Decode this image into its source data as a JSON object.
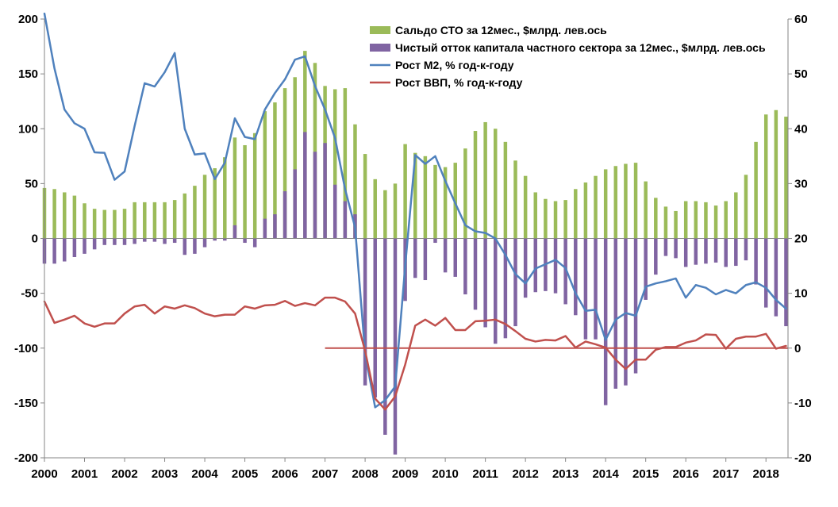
{
  "chart_data": {
    "type": "bar",
    "title": "",
    "xlabel": "",
    "ylabel": "",
    "ylim": [
      -200,
      200
    ],
    "y2lim": [
      -20,
      60
    ],
    "yticks": [
      -200,
      -150,
      -100,
      -50,
      0,
      50,
      100,
      150,
      200
    ],
    "y2ticks": [
      -20,
      -10,
      0,
      10,
      20,
      30,
      40,
      50,
      60
    ],
    "xlim": [
      2000,
      2018.55
    ],
    "year_ticks": [
      "2000",
      "2001",
      "2002",
      "2003",
      "2004",
      "2005",
      "2006",
      "2007",
      "2008",
      "2009",
      "2010",
      "2011",
      "2012",
      "2013",
      "2014",
      "2015",
      "2016",
      "2017",
      "2018"
    ],
    "grid": false,
    "legend_position": "top-right",
    "x": [
      2000.0,
      2000.25,
      2000.5,
      2000.75,
      2001.0,
      2001.25,
      2001.5,
      2001.75,
      2002.0,
      2002.25,
      2002.5,
      2002.75,
      2003.0,
      2003.25,
      2003.5,
      2003.75,
      2004.0,
      2004.25,
      2004.5,
      2004.75,
      2005.0,
      2005.25,
      2005.5,
      2005.75,
      2006.0,
      2006.25,
      2006.5,
      2006.75,
      2007.0,
      2007.25,
      2007.5,
      2007.75,
      2008.0,
      2008.25,
      2008.5,
      2008.75,
      2009.0,
      2009.25,
      2009.5,
      2009.75,
      2010.0,
      2010.25,
      2010.5,
      2010.75,
      2011.0,
      2011.25,
      2011.5,
      2011.75,
      2012.0,
      2012.25,
      2012.5,
      2012.75,
      2013.0,
      2013.25,
      2013.5,
      2013.75,
      2014.0,
      2014.25,
      2014.5,
      2014.75,
      2015.0,
      2015.25,
      2015.5,
      2015.75,
      2016.0,
      2016.25,
      2016.5,
      2016.75,
      2017.0,
      2017.25,
      2017.5,
      2017.75,
      2018.0,
      2018.25,
      2018.5
    ],
    "series": [
      {
        "name": "Сальдо СТО за 12мес., $млрд. лев.ось",
        "kind": "bar",
        "axis": "left",
        "color": "#9BBB59",
        "values": [
          46,
          45,
          42,
          39,
          32,
          27,
          26,
          26,
          27,
          33,
          33,
          33,
          33,
          35,
          41,
          48,
          58,
          64,
          74,
          92,
          85,
          96,
          116,
          124,
          137,
          147,
          171,
          160,
          139,
          136,
          137,
          104,
          77,
          54,
          44,
          50,
          86,
          78,
          75,
          67,
          65,
          69,
          82,
          98,
          106,
          100,
          88,
          71,
          57,
          42,
          36,
          34,
          35,
          45,
          51,
          57,
          63,
          66,
          68,
          69,
          52,
          37,
          29,
          25,
          34,
          34,
          33,
          30,
          34,
          42,
          58,
          88,
          113,
          117,
          111
        ]
      },
      {
        "name": "Чистый отток капитала частного сектора за 12мес., $млрд. лев.ось",
        "kind": "bar",
        "axis": "left",
        "color": "#8064A2",
        "values": [
          -23,
          -23,
          -21,
          -17,
          -14,
          -10,
          -6,
          -6,
          -6,
          -5,
          -3,
          -3,
          -5,
          -4,
          -15,
          -14,
          -8,
          -2,
          -2,
          12,
          -4,
          -8,
          18,
          22,
          43,
          63,
          97,
          79,
          87,
          49,
          34,
          22,
          -134,
          -145,
          -179,
          -197,
          -57,
          -36,
          -38,
          -4,
          -31,
          -35,
          -51,
          -65,
          -81,
          -96,
          -91,
          -80,
          -54,
          -49,
          -48,
          -50,
          -60,
          -70,
          -92,
          -92,
          -152,
          -137,
          -134,
          -123,
          -56,
          -33,
          -16,
          -18,
          -26,
          -24,
          -23,
          -22,
          -26,
          -25,
          -20,
          -42,
          -63,
          -71,
          -80
        ]
      },
      {
        "name": "Рост М2, % год-к-году",
        "kind": "line",
        "axis": "right",
        "color": "#4F81BD",
        "values": [
          61,
          51,
          43.5,
          41,
          40,
          35.7,
          35.6,
          30.7,
          32.2,
          40.5,
          48.3,
          47.7,
          50.3,
          53.8,
          40,
          35.3,
          35.5,
          30.8,
          33.8,
          41.9,
          38.5,
          38.1,
          43.5,
          46.5,
          49,
          52.6,
          53.2,
          47.8,
          43.5,
          38.3,
          29,
          22,
          -1,
          -10.8,
          -9.5,
          -7,
          15,
          35.2,
          33.6,
          35,
          30.5,
          26.4,
          22.4,
          21.3,
          21,
          20,
          17,
          13.5,
          11.8,
          14.5,
          15.3,
          16.1,
          14.6,
          10,
          6.8,
          7,
          1.5,
          5.2,
          6.4,
          5.9,
          11.2,
          11.8,
          12.2,
          12.7,
          9.2,
          11.5,
          11,
          9.8,
          10.6,
          10,
          11.5,
          12,
          11,
          8.8,
          7.2
        ]
      },
      {
        "name": "Рост ВВП, % год-к-году",
        "kind": "line",
        "axis": "right",
        "color": "#C0504D",
        "values": [
          8.5,
          4.6,
          5.2,
          5.9,
          4.5,
          3.9,
          4.5,
          4.5,
          6.3,
          7.6,
          7.9,
          6.3,
          7.6,
          7.2,
          7.8,
          7.3,
          6.3,
          5.8,
          6.1,
          6.1,
          7.6,
          7.2,
          7.8,
          7.9,
          8.6,
          7.7,
          8.2,
          7.8,
          9.2,
          9.2,
          8.5,
          6.3,
          -0.5,
          -9.2,
          -11.2,
          -8.8,
          -3,
          4.1,
          5.2,
          4.1,
          5.5,
          3.3,
          3.3,
          4.9,
          5,
          5.2,
          4.4,
          3.1,
          1.7,
          1.2,
          1.5,
          1.4,
          2.2,
          0.1,
          1.2,
          0.7,
          0.1,
          -2.1,
          -3.8,
          -2.1,
          -2.1,
          -0.3,
          0.2,
          0.2,
          1,
          1.4,
          2.5,
          2.4,
          -0.1,
          1.7,
          2.1,
          2.1,
          2.6,
          -0.1,
          0.4
        ]
      }
    ],
    "reference_lines": [
      {
        "axis": "right",
        "value": 0,
        "from_x": 2007.0,
        "to_x": 2018.55,
        "color": "#C0504D"
      }
    ]
  }
}
